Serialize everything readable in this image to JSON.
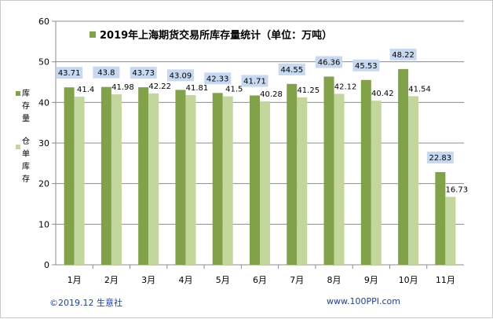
{
  "chart_data": {
    "type": "bar",
    "title": "2019年上海期货交易所库存量统计（单位：万吨）",
    "categories": [
      "1月",
      "2月",
      "3月",
      "4月",
      "5月",
      "6月",
      "7月",
      "8月",
      "9月",
      "10月",
      "11月"
    ],
    "series": [
      {
        "name": "库存量",
        "values": [
          43.71,
          43.8,
          43.73,
          43.09,
          42.33,
          41.71,
          44.55,
          46.36,
          45.53,
          48.22,
          22.83
        ],
        "color": "#82A24A"
      },
      {
        "name": "仓单库存",
        "values": [
          41.4,
          41.98,
          42.22,
          41.81,
          41.5,
          40.28,
          41.25,
          42.12,
          40.42,
          41.54,
          16.73
        ],
        "color": "#C3D69B"
      }
    ],
    "value_labels": {
      "series0": [
        "43.71",
        "43.8",
        "43.73",
        "43.09",
        "42.33",
        "41.71",
        "44.55",
        "46.36",
        "45.53",
        "48.22",
        "22.83"
      ],
      "series1": [
        "41.4",
        "41.98",
        "42.22",
        "41.81",
        "41.5",
        "40.28",
        "41.25",
        "42.12",
        "40.42",
        "41.54",
        "16.73"
      ]
    },
    "ylim": [
      0,
      60
    ],
    "yticks": [
      0,
      10,
      20,
      30,
      40,
      50,
      60
    ],
    "xlabel": "",
    "ylabel": "",
    "legend_position": "left",
    "label_box_color": "#C6D9F1"
  },
  "footer": {
    "left": "©2019.12 生意社",
    "right": "www.100PPI.com"
  }
}
